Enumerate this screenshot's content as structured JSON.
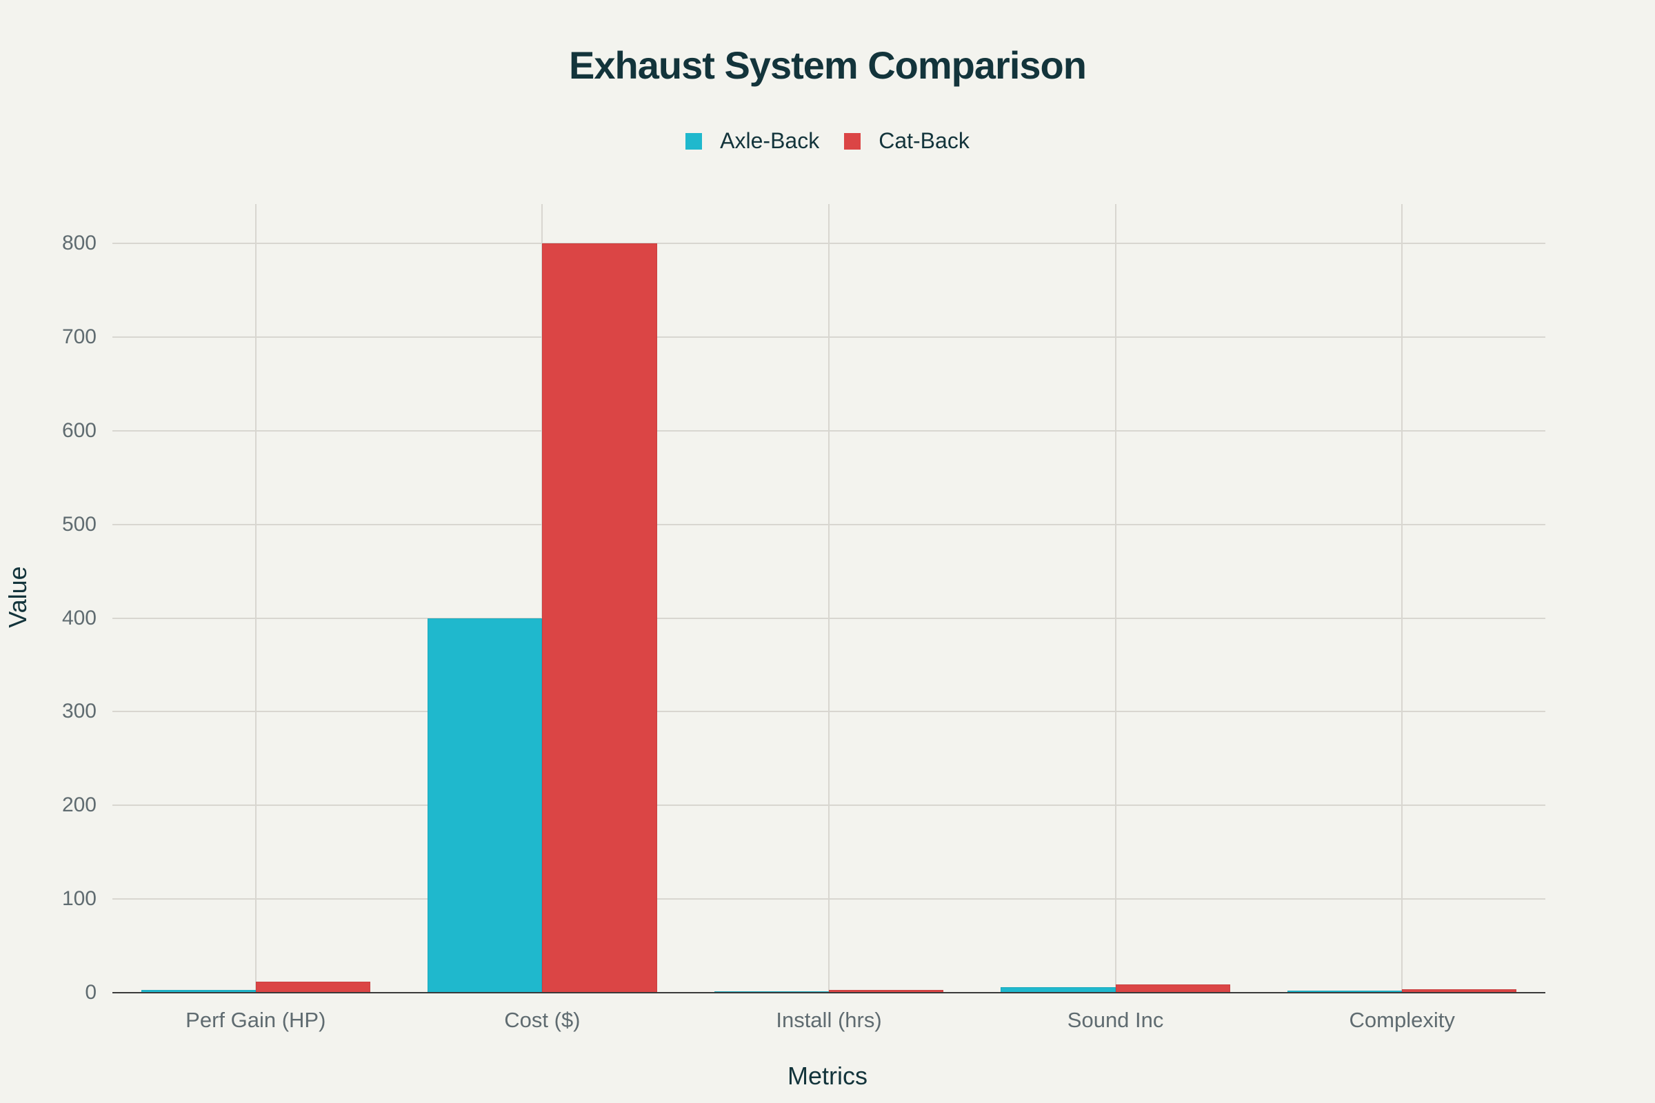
{
  "chart_data": {
    "type": "bar",
    "title": "Exhaust System Comparison",
    "xlabel": "Metrics",
    "ylabel": "Value",
    "categories": [
      "Perf Gain (HP)",
      "Cost ($)",
      "Install (hrs)",
      "Sound Inc",
      "Complexity"
    ],
    "series": [
      {
        "name": "Axle-Back",
        "color": "#1fb8cd",
        "values": [
          3,
          400,
          1,
          6,
          2
        ]
      },
      {
        "name": "Cat-Back",
        "color": "#db4545",
        "values": [
          12,
          800,
          3,
          9,
          4
        ]
      }
    ],
    "ylim": [
      0,
      840
    ],
    "yticks": [
      0,
      100,
      200,
      300,
      400,
      500,
      600,
      700,
      800
    ],
    "grid": true,
    "legend_position": "top-center"
  },
  "colors": {
    "background": "#f3f3ee",
    "title": "#13343b",
    "tick": "#5f6b70",
    "grid": "#d8d6d0"
  }
}
